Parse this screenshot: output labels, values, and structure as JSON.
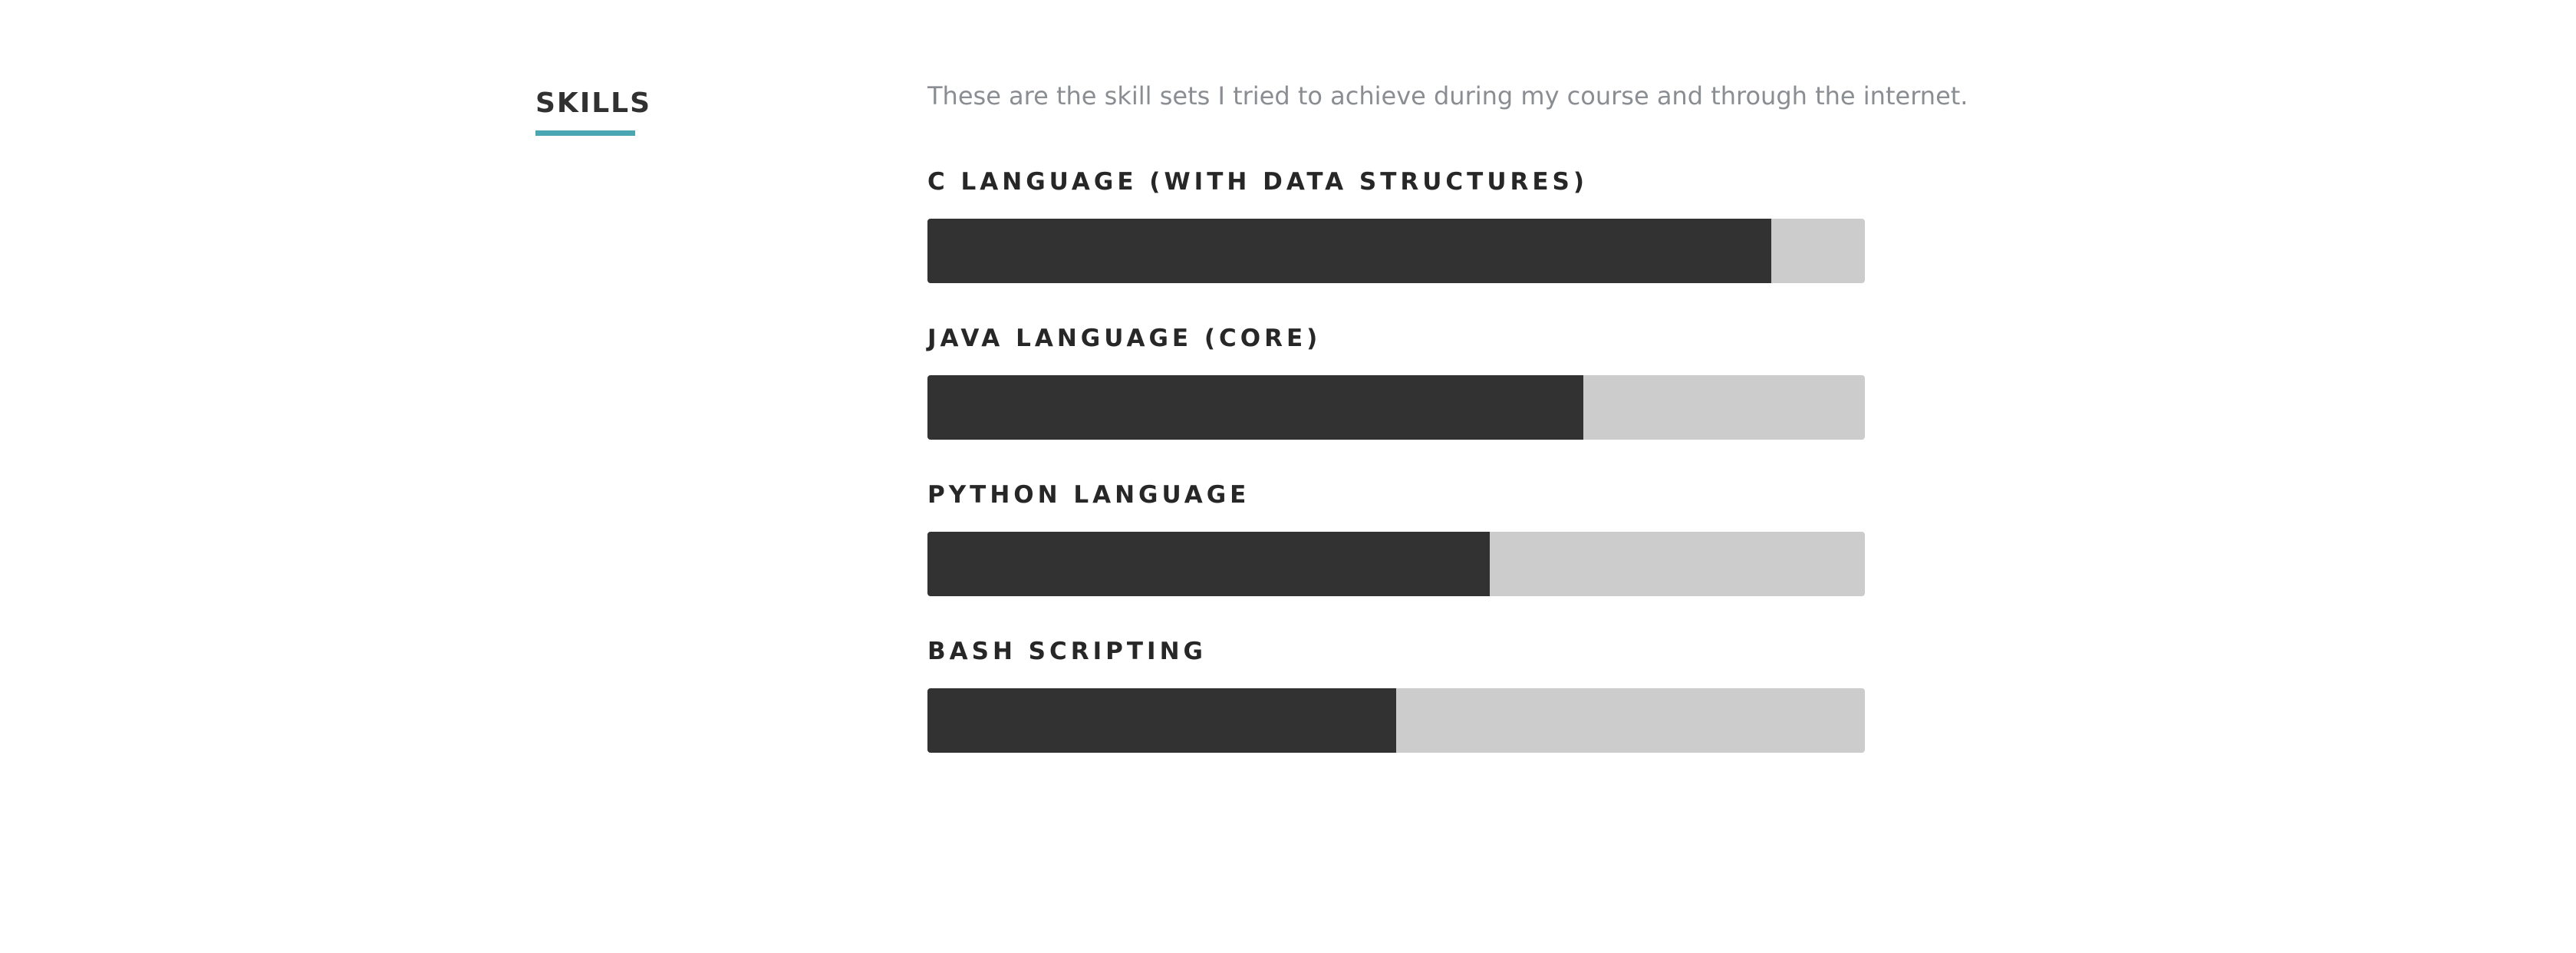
{
  "section": {
    "title": "SKILLS",
    "intro": "These are the skill sets I tried to achieve during my course and through the internet."
  },
  "skills": [
    {
      "name": "C LANGUAGE (WITH DATA STRUCTURES)",
      "level": 0.9
    },
    {
      "name": "JAVA LANGUAGE (CORE)",
      "level": 0.7
    },
    {
      "name": "PYTHON LANGUAGE",
      "level": 0.6
    },
    {
      "name": "BASH SCRIPTING",
      "level": 0.5
    }
  ],
  "colors": {
    "accent": "#4aa6b3",
    "bar_fill": "#323232",
    "bar_track": "#cccccc",
    "intro_text": "#8a8d92",
    "heading_text": "#313131"
  }
}
